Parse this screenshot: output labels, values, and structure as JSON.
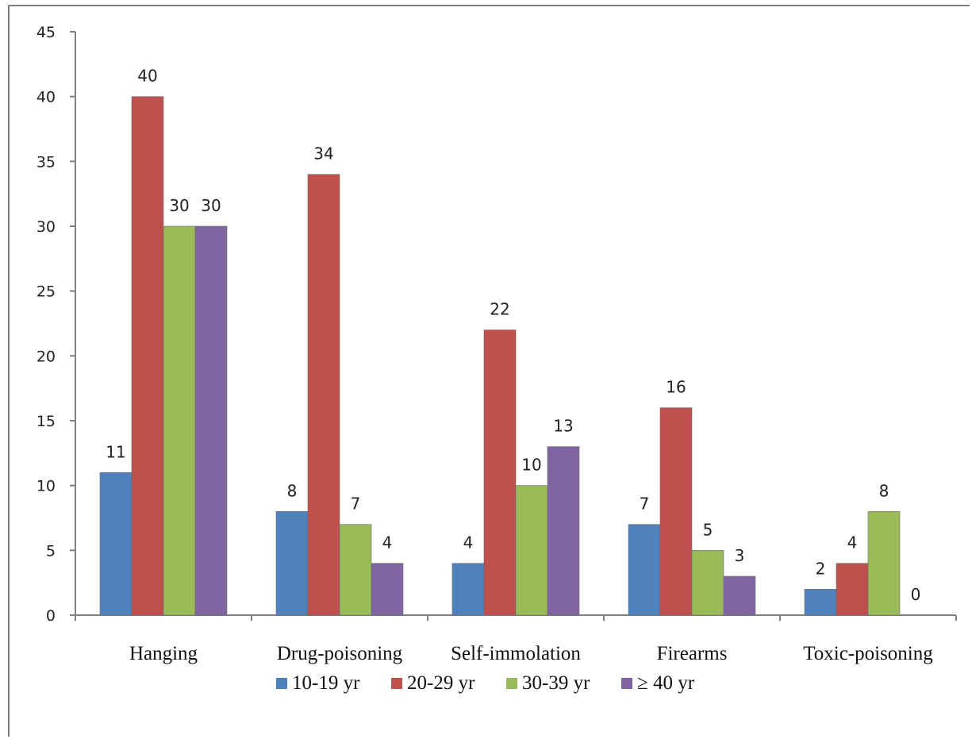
{
  "chart_data": {
    "type": "bar",
    "title": "",
    "xlabel": "",
    "ylabel": "",
    "categories": [
      "Hanging",
      "Drug-poisoning",
      "Self-immolation",
      "Firearms",
      "Toxic-poisoning"
    ],
    "series": [
      {
        "name": "10-19 yr",
        "color": "#4f81bd",
        "values": [
          11,
          8,
          4,
          7,
          2
        ]
      },
      {
        "name": "20-29 yr",
        "color": "#c0504d",
        "values": [
          40,
          34,
          22,
          16,
          4
        ]
      },
      {
        "name": "30-39 yr",
        "color": "#9bbb59",
        "values": [
          30,
          7,
          10,
          5,
          8
        ]
      },
      {
        "name": "≥ 40 yr",
        "color": "#8064a2",
        "values": [
          30,
          4,
          13,
          3,
          0
        ]
      }
    ],
    "ylim": [
      0,
      45
    ],
    "yticks": [
      0,
      5,
      10,
      15,
      20,
      25,
      30,
      35,
      40,
      45
    ],
    "grid": false,
    "data_labels": true,
    "legend_position": "bottom"
  }
}
